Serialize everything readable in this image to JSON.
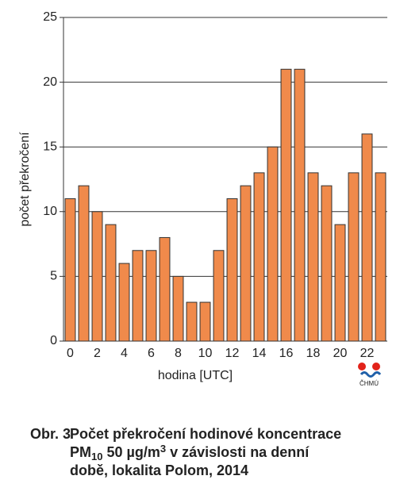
{
  "chart_data": {
    "type": "bar",
    "y_label": "počet překročení",
    "x_label": "hodina [UTC]",
    "categories": [
      "0",
      null,
      "2",
      null,
      "4",
      null,
      "6",
      null,
      "8",
      null,
      "10",
      null,
      "12",
      null,
      "14",
      null,
      "16",
      null,
      "18",
      null,
      "20",
      null,
      "22",
      null
    ],
    "values": [
      11,
      12,
      10,
      9,
      6,
      7,
      7,
      8,
      5,
      3,
      3,
      7,
      11,
      12,
      13,
      15,
      21,
      21,
      13,
      12,
      9,
      13,
      16,
      13
    ],
    "color": "#f08a4b",
    "ylim": [
      0,
      25
    ],
    "yticks": [
      0,
      5,
      10,
      15,
      20,
      25
    ],
    "grid": true
  },
  "logo_text": "ČHMÚ",
  "caption": {
    "label": "Obr. 3",
    "line1": "Počet překročení hodinové koncentrace",
    "line2": [
      "PM",
      "10",
      "50 µg/m",
      "3",
      "v závislosti na denní"
    ],
    "line3": "době, lokalita Polom, 2014"
  }
}
